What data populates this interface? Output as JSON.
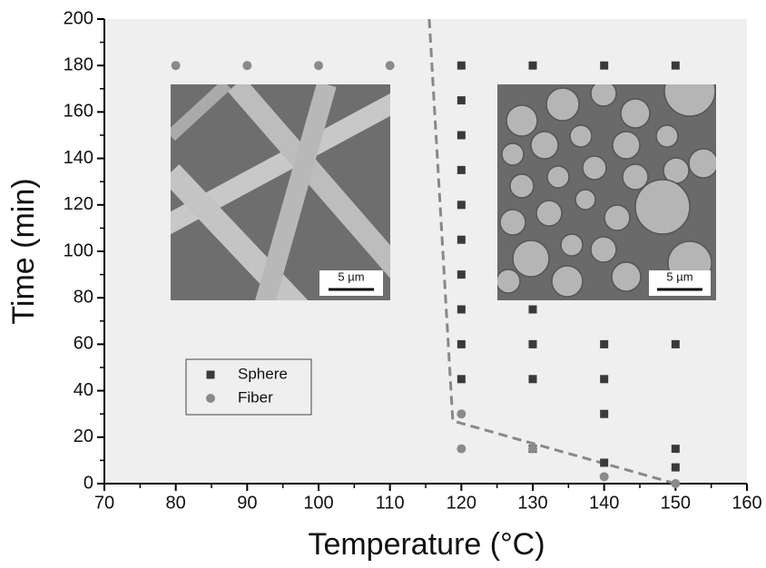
{
  "chart_data": {
    "type": "scatter",
    "x_label": "Temperature (°C)",
    "y_label": "Time (min)",
    "xlim": [
      70,
      160
    ],
    "xticks": [
      70,
      80,
      90,
      100,
      110,
      120,
      130,
      140,
      150,
      160
    ],
    "ylim": [
      0,
      200
    ],
    "yticks": [
      0,
      20,
      40,
      60,
      80,
      100,
      120,
      140,
      160,
      180,
      200
    ],
    "grid": false,
    "legend": "lower left",
    "series": [
      {
        "name": "Sphere",
        "color": "#3a3a3a",
        "marker": "square",
        "x": [
          120,
          120,
          120,
          120,
          120,
          120,
          120,
          120,
          120,
          120,
          130,
          130,
          130,
          130,
          130,
          140,
          140,
          140,
          140,
          140,
          150,
          150,
          150,
          150
        ],
        "values": [
          180,
          165,
          150,
          135,
          120,
          105,
          90,
          75,
          60,
          45,
          180,
          75,
          60,
          45,
          15,
          180,
          60,
          45,
          30,
          9,
          180,
          60,
          15,
          7
        ]
      },
      {
        "name": "Fiber",
        "color": "#8a8a8a",
        "marker": "circle",
        "x": [
          80,
          90,
          100,
          110,
          120,
          120,
          130,
          140,
          150
        ],
        "values": [
          180,
          180,
          180,
          180,
          30,
          15,
          15,
          3,
          0
        ]
      }
    ],
    "boundary_line": {
      "color": "#888888",
      "x": [
        115.5,
        118.8,
        150
      ],
      "values": [
        200,
        27,
        0
      ]
    },
    "insets": [
      {
        "scale_label": "5 µm"
      },
      {
        "scale_label": "5 µm"
      }
    ]
  }
}
